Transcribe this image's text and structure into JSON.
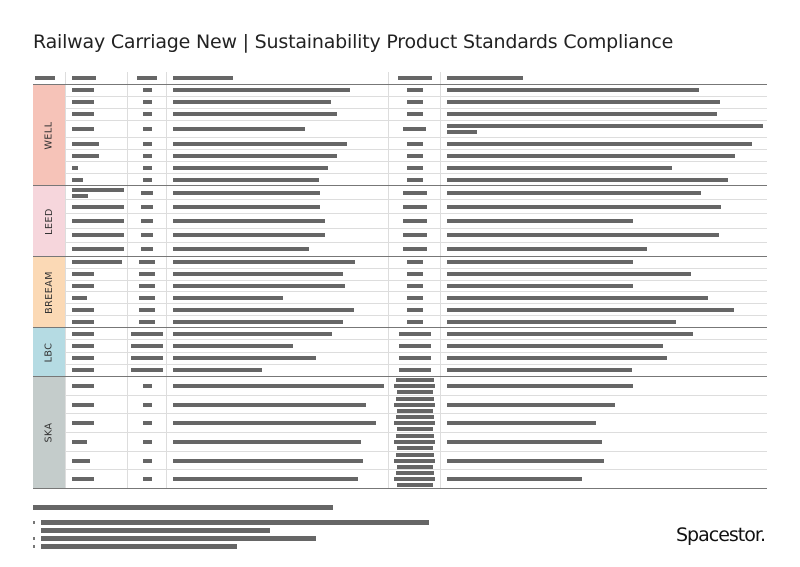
{
  "title": "Railway Carriage New | Sustainability Product Standards Compliance",
  "sections": [
    {
      "label": "WELL",
      "color": "#f6c3b8"
    },
    {
      "label": "LEED",
      "color": "#f6d6dc"
    },
    {
      "label": "BREEAM",
      "color": "#fbd9b5"
    },
    {
      "label": "LBC",
      "color": "#b5dbe3"
    },
    {
      "label": "SKA",
      "color": "#c4cccb"
    }
  ],
  "logo": "Spacestor."
}
